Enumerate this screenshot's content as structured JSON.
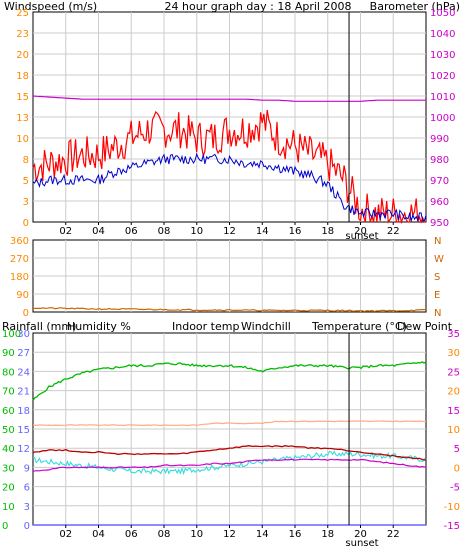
{
  "title": "24 hour graph day : 18 April 2008",
  "x_ticks": [
    "02",
    "04",
    "06",
    "08",
    "10",
    "12",
    "14",
    "16",
    "18",
    "20",
    "22"
  ],
  "sunset_label": "sunset",
  "colors": {
    "wind_gust": "#ff0000",
    "wind_avg": "#0000cc",
    "barometer": "#cc00cc",
    "direction": "#cc6600",
    "rainfall": "#6666ff",
    "humidity": "#00bb00",
    "indoor": "#ffaa88",
    "windchill": "#33dddd",
    "temperature": "#bb0000",
    "dewpoint": "#cc00cc",
    "grid": "#cccccc",
    "axis_left": "#ff8800",
    "axis_right": "#cc00cc"
  },
  "panel1": {
    "left_label": "Windspeed (m/s)",
    "right_label": "Barometer (hPa)",
    "left_ticks": [
      "25",
      "23",
      "20",
      "18",
      "15",
      "13",
      "10",
      "8",
      "5",
      "3",
      "0"
    ],
    "right_ticks": [
      "1050",
      "1040",
      "1030",
      "1020",
      "1010",
      "1000",
      "990",
      "980",
      "970",
      "960",
      "950"
    ]
  },
  "panel2": {
    "left_ticks": [
      "360",
      "270",
      "180",
      "90",
      "0"
    ],
    "right_ticks": [
      "N",
      "W",
      "S",
      "E",
      "N"
    ]
  },
  "panel3": {
    "labels": {
      "rainfall": "Rainfall (mm)",
      "humidity": "Humidity %",
      "indoor": "Indoor temp",
      "windchill": "Windchill",
      "temperature": "Temperature (°C)",
      "dewpoint": "Dew Point"
    },
    "rain_ticks": [
      "30",
      "27",
      "24",
      "21",
      "18",
      "15",
      "12",
      "9",
      "6",
      "3",
      "0"
    ],
    "hum_ticks": [
      "100",
      "90",
      "80",
      "70",
      "60",
      "50",
      "40",
      "30",
      "20",
      "10",
      "0"
    ],
    "temp_ticks": [
      "35",
      "30",
      "25",
      "20",
      "15",
      "10",
      "5",
      "0",
      "-5",
      "-10",
      "-15"
    ]
  },
  "chart_data": [
    {
      "type": "line",
      "title": "24 hour graph day : 18 April 2008",
      "x_unit": "hour",
      "x": [
        0,
        1,
        2,
        3,
        4,
        5,
        6,
        7,
        8,
        9,
        10,
        11,
        12,
        13,
        14,
        15,
        16,
        17,
        18,
        19,
        20,
        21,
        22,
        23,
        24
      ],
      "ylim_left": [
        0,
        25
      ],
      "ylim_right": [
        950,
        1050
      ],
      "series": [
        {
          "name": "Windspeed (m/s)",
          "axis": "left",
          "values": [
            6.5,
            7,
            7.5,
            8,
            8,
            9,
            10,
            11,
            11,
            11,
            10,
            10,
            11,
            11,
            12,
            10,
            9,
            8,
            7,
            5,
            1.5,
            1,
            1,
            1,
            1
          ]
        },
        {
          "name": "Windspeed (m/s)",
          "axis": "left",
          "values": [
            4.5,
            5,
            5,
            5,
            5,
            6,
            6.5,
            7,
            7.5,
            7.5,
            7.5,
            7.5,
            7.5,
            7,
            7,
            6.5,
            6,
            5.5,
            4.5,
            2,
            1,
            1,
            1,
            0.5,
            0.5
          ]
        },
        {
          "name": "Barometer (hPa)",
          "axis": "right",
          "values": [
            1010,
            1009.5,
            1009,
            1008.5,
            1008.5,
            1008.5,
            1008.5,
            1008.5,
            1008.5,
            1008.5,
            1008.5,
            1008.5,
            1008.5,
            1008.5,
            1008,
            1008,
            1007.5,
            1007.5,
            1007.5,
            1007.5,
            1007.5,
            1008,
            1008,
            1008,
            1008
          ]
        }
      ]
    },
    {
      "type": "line",
      "x_unit": "hour",
      "x": [
        0,
        2,
        4,
        6,
        8,
        10,
        12,
        14,
        16,
        18,
        20,
        22,
        24
      ],
      "ylim": [
        0,
        360
      ],
      "series": [
        {
          "name": "",
          "values": [
            20,
            18,
            15,
            14,
            12,
            10,
            10,
            8,
            8,
            8,
            6,
            6,
            10
          ]
        }
      ]
    },
    {
      "type": "line",
      "x_unit": "hour",
      "x": [
        0,
        1,
        2,
        3,
        4,
        5,
        6,
        7,
        8,
        9,
        10,
        11,
        12,
        13,
        14,
        15,
        16,
        17,
        18,
        19,
        20,
        21,
        22,
        23,
        24
      ],
      "ylim_rain": [
        0,
        30
      ],
      "ylim_humidity": [
        0,
        100
      ],
      "ylim_temp": [
        -15,
        35
      ],
      "series": [
        {
          "name": "Rainfall (mm)",
          "axis": "rain",
          "values": [
            0,
            0,
            0,
            0,
            0,
            0,
            0,
            0,
            0,
            0,
            0,
            0,
            0,
            0,
            0,
            0,
            0,
            0,
            0,
            0,
            0,
            0,
            0,
            0,
            0
          ]
        },
        {
          "name": "Humidity %",
          "axis": "humidity",
          "values": [
            65,
            72,
            76,
            79,
            81,
            82,
            83,
            83,
            84,
            84,
            83,
            83,
            83,
            82,
            80,
            82,
            83,
            83,
            83,
            82,
            82,
            83,
            83,
            84,
            85
          ]
        },
        {
          "name": "Indoor temp",
          "axis": "temp",
          "values": [
            11,
            11,
            11,
            11,
            11,
            11,
            11,
            11,
            11,
            11,
            11,
            11.5,
            11.5,
            11.5,
            11.5,
            12,
            12,
            12,
            12,
            12,
            12,
            12,
            12,
            12,
            12
          ]
        },
        {
          "name": "Windchill",
          "axis": "temp",
          "values": [
            2,
            1.5,
            1,
            0.5,
            0,
            -0.5,
            -1,
            -1,
            -1,
            -1,
            -0.5,
            0,
            0.5,
            1,
            1.5,
            2,
            2.5,
            3,
            3.5,
            3.5,
            3.5,
            3,
            3,
            2.5,
            2
          ]
        },
        {
          "name": "Temperature (°C)",
          "axis": "temp",
          "values": [
            4,
            4.5,
            4.5,
            4,
            4,
            3.5,
            3.5,
            3.5,
            3.5,
            3.5,
            4,
            4.5,
            5,
            5.5,
            5.5,
            5.5,
            5.5,
            5,
            5,
            4.5,
            4,
            3.5,
            3,
            2.5,
            2
          ]
        },
        {
          "name": "Dew Point",
          "axis": "temp",
          "values": [
            -1,
            -0.5,
            0,
            0,
            0,
            0,
            0,
            0,
            0.5,
            0.5,
            0.5,
            1,
            1,
            1.5,
            2,
            2,
            2,
            2,
            2,
            2,
            2,
            1.5,
            1,
            0.5,
            0
          ]
        }
      ]
    }
  ]
}
